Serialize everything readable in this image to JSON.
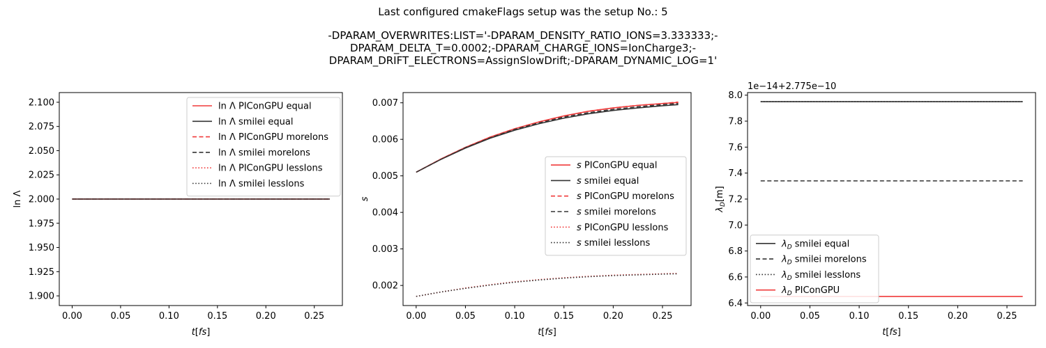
{
  "figure": {
    "title": "Last configured cmakeFlags setup was the setup No.: 5",
    "subtitle_lines": [
      "-DPARAM_OVERWRITES:LIST='-DPARAM_DENSITY_RATIO_IONS=3.333333;-",
      "DPARAM_DELTA_T=0.0002;-DPARAM_CHARGE_IONS=IonCharge3;-",
      "DPARAM_DRIFT_ELECTRONS=AssignSlowDrift;-DPARAM_DYNAMIC_LOG=1'"
    ]
  },
  "colors": {
    "red": "#f03a3a",
    "black": "#333333"
  },
  "chart_data": [
    {
      "type": "line",
      "xlabel": "t[fs]",
      "ylabel": "ln Λ",
      "xlim": [
        -0.0133,
        0.279
      ],
      "ylim": [
        1.89,
        2.11
      ],
      "xticks": [
        0.0,
        0.05,
        0.1,
        0.15,
        0.2,
        0.25
      ],
      "xtick_labels": [
        "0.00",
        "0.05",
        "0.10",
        "0.15",
        "0.20",
        "0.25"
      ],
      "yticks": [
        1.9,
        1.925,
        1.95,
        1.975,
        2.0,
        2.025,
        2.05,
        2.075,
        2.1
      ],
      "ytick_labels": [
        "1.900",
        "1.925",
        "1.950",
        "1.975",
        "2.000",
        "2.025",
        "2.050",
        "2.075",
        "2.100"
      ],
      "legend": "top-right",
      "series": [
        {
          "name": "ln Λ PIConGPU equal",
          "color": "red",
          "dash": "solid",
          "x": [
            0.0,
            0.266
          ],
          "y": [
            2.0,
            2.0
          ]
        },
        {
          "name": "ln Λ smilei equal",
          "color": "black",
          "dash": "solid",
          "x": [
            0.0,
            0.266
          ],
          "y": [
            2.0,
            2.0
          ]
        },
        {
          "name": "ln Λ PIConGPU moreIons",
          "color": "red",
          "dash": "dashed",
          "x": [
            0.0,
            0.266
          ],
          "y": [
            2.0,
            2.0
          ]
        },
        {
          "name": "ln Λ smilei moreIons",
          "color": "black",
          "dash": "dashed",
          "x": [
            0.0,
            0.266
          ],
          "y": [
            2.0,
            2.0
          ]
        },
        {
          "name": "ln Λ PIConGPU lessIons",
          "color": "red",
          "dash": "dotted",
          "x": [
            0.0,
            0.266
          ],
          "y": [
            2.0,
            2.0
          ]
        },
        {
          "name": "ln Λ smilei lessIons",
          "color": "black",
          "dash": "dotted",
          "x": [
            0.0,
            0.266
          ],
          "y": [
            2.0,
            2.0
          ]
        }
      ]
    },
    {
      "type": "line",
      "xlabel": "t[fs]",
      "ylabel": "s",
      "xlim": [
        -0.0133,
        0.279
      ],
      "ylim": [
        0.00145,
        0.00728
      ],
      "xticks": [
        0.0,
        0.05,
        0.1,
        0.15,
        0.2,
        0.25
      ],
      "xtick_labels": [
        "0.00",
        "0.05",
        "0.10",
        "0.15",
        "0.20",
        "0.25"
      ],
      "yticks": [
        0.002,
        0.003,
        0.004,
        0.005,
        0.006,
        0.007
      ],
      "ytick_labels": [
        "0.002",
        "0.003",
        "0.004",
        "0.005",
        "0.006",
        "0.007"
      ],
      "legend": "center-right",
      "series": [
        {
          "name": "s PIConGPU equal",
          "color": "red",
          "dash": "solid",
          "x": [
            0.0,
            0.025,
            0.05,
            0.075,
            0.1,
            0.125,
            0.15,
            0.175,
            0.2,
            0.225,
            0.25,
            0.266
          ],
          "y": [
            0.0051,
            0.00546,
            0.00578,
            0.00606,
            0.00629,
            0.00648,
            0.00664,
            0.00677,
            0.00686,
            0.00693,
            0.00698,
            0.00701
          ]
        },
        {
          "name": "s smilei equal",
          "color": "black",
          "dash": "solid",
          "x": [
            0.0,
            0.025,
            0.05,
            0.075,
            0.1,
            0.125,
            0.15,
            0.175,
            0.2,
            0.225,
            0.25,
            0.266
          ],
          "y": [
            0.0051,
            0.00545,
            0.00576,
            0.00603,
            0.00625,
            0.00643,
            0.00658,
            0.0067,
            0.00679,
            0.00686,
            0.00692,
            0.00695
          ]
        },
        {
          "name": "s PIConGPU moreIons",
          "color": "red",
          "dash": "dashed",
          "x": [
            0.0,
            0.025,
            0.05,
            0.075,
            0.1,
            0.125,
            0.15,
            0.175,
            0.2,
            0.225,
            0.25,
            0.266
          ],
          "y": [
            0.0051,
            0.00546,
            0.00578,
            0.00606,
            0.00629,
            0.00648,
            0.00664,
            0.00677,
            0.00686,
            0.00693,
            0.00698,
            0.00702
          ]
        },
        {
          "name": "s smilei moreIons",
          "color": "black",
          "dash": "dashed",
          "x": [
            0.0,
            0.025,
            0.05,
            0.075,
            0.1,
            0.125,
            0.15,
            0.175,
            0.2,
            0.225,
            0.25,
            0.266
          ],
          "y": [
            0.0051,
            0.00545,
            0.00577,
            0.00604,
            0.00627,
            0.00645,
            0.00661,
            0.00673,
            0.00682,
            0.00689,
            0.00695,
            0.00698
          ]
        },
        {
          "name": "s PIConGPU lessIons",
          "color": "red",
          "dash": "dotted",
          "x": [
            0.0,
            0.025,
            0.05,
            0.075,
            0.1,
            0.125,
            0.15,
            0.175,
            0.2,
            0.225,
            0.25,
            0.266
          ],
          "y": [
            0.0017,
            0.00182,
            0.00193,
            0.00202,
            0.0021,
            0.00216,
            0.00221,
            0.00225,
            0.00228,
            0.0023,
            0.00232,
            0.00233
          ]
        },
        {
          "name": "s smilei lessIons",
          "color": "black",
          "dash": "dotted",
          "x": [
            0.0,
            0.025,
            0.05,
            0.075,
            0.1,
            0.125,
            0.15,
            0.175,
            0.2,
            0.225,
            0.25,
            0.266
          ],
          "y": [
            0.0017,
            0.00182,
            0.00192,
            0.00201,
            0.00209,
            0.00215,
            0.0022,
            0.00224,
            0.00227,
            0.00229,
            0.00231,
            0.00232
          ]
        }
      ]
    },
    {
      "type": "line",
      "xlabel": "t[fs]",
      "ylabel": "λD[m]",
      "offset_text": "1e−14+2.775e−10",
      "xlim": [
        -0.0133,
        0.279
      ],
      "ylim": [
        6.38,
        8.02
      ],
      "xticks": [
        0.0,
        0.05,
        0.1,
        0.15,
        0.2,
        0.25
      ],
      "xtick_labels": [
        "0.00",
        "0.05",
        "0.10",
        "0.15",
        "0.20",
        "0.25"
      ],
      "yticks": [
        6.4,
        6.6,
        6.8,
        7.0,
        7.2,
        7.4,
        7.6,
        7.8,
        8.0
      ],
      "ytick_labels": [
        "6.4",
        "6.6",
        "6.8",
        "7.0",
        "7.2",
        "7.4",
        "7.6",
        "7.8",
        "8.0"
      ],
      "legend": "lower-left",
      "series": [
        {
          "name": "λD smilei equal",
          "color": "black",
          "dash": "solid",
          "x": [
            0.0,
            0.266
          ],
          "y": [
            7.95,
            7.95
          ]
        },
        {
          "name": "λD smilei moreIons",
          "color": "black",
          "dash": "dashed",
          "x": [
            0.0,
            0.266
          ],
          "y": [
            7.34,
            7.34
          ]
        },
        {
          "name": "λD smilei lessIons",
          "color": "black",
          "dash": "dotted",
          "x": [
            0.0,
            0.266
          ],
          "y": [
            7.95,
            7.95
          ]
        },
        {
          "name": "λD PIConGPU",
          "color": "red",
          "dash": "solid",
          "x": [
            0.0,
            0.266
          ],
          "y": [
            6.45,
            6.45
          ]
        }
      ]
    }
  ]
}
